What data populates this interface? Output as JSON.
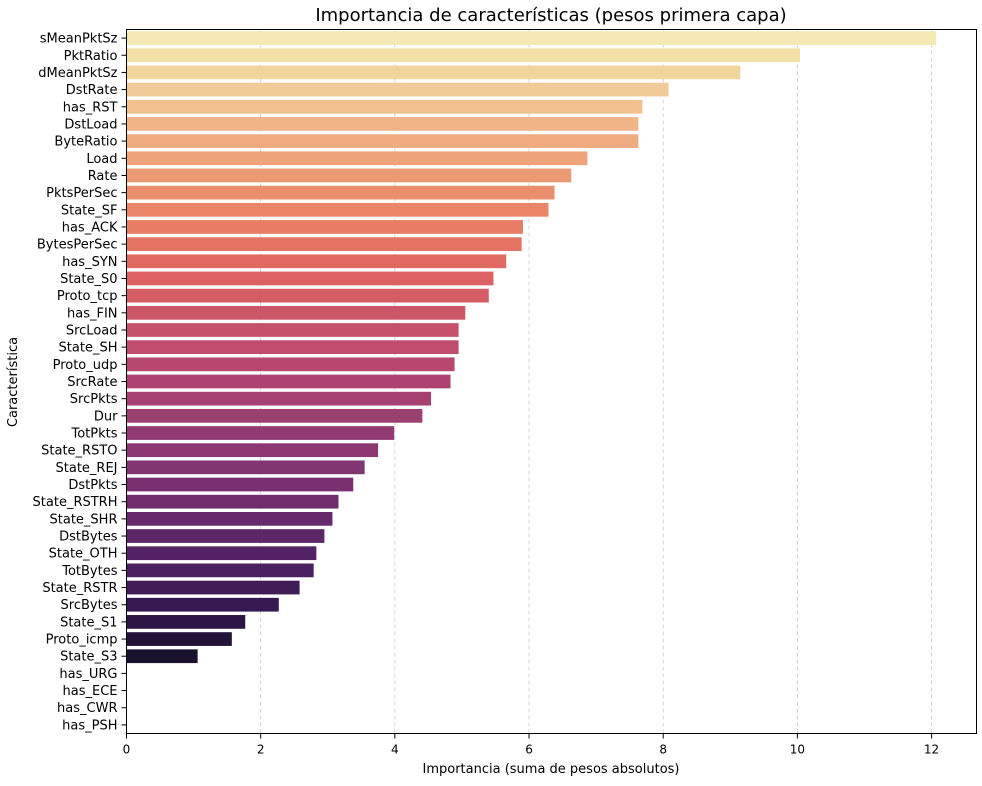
{
  "chart_data": {
    "type": "bar",
    "orientation": "horizontal",
    "title": "Importancia de características (pesos primera capa)",
    "xlabel": "Importancia (suma de pesos absolutos)",
    "ylabel": "Característica",
    "xlim": [
      0,
      12.67
    ],
    "xticks": [
      0,
      2,
      4,
      6,
      8,
      10,
      12
    ],
    "grid": "x, dashed",
    "colormap": "magma (light to dark)",
    "categories": [
      "sMeanPktSz",
      "PktRatio",
      "dMeanPktSz",
      "DstRate",
      "has_RST",
      "DstLoad",
      "ByteRatio",
      "Load",
      "Rate",
      "PktsPerSec",
      "State_SF",
      "has_ACK",
      "BytesPerSec",
      "has_SYN",
      "State_S0",
      "Proto_tcp",
      "has_FIN",
      "SrcLoad",
      "State_SH",
      "Proto_udp",
      "SrcRate",
      "SrcPkts",
      "Dur",
      "TotPkts",
      "State_RSTO",
      "State_REJ",
      "DstPkts",
      "State_RSTRH",
      "State_SHR",
      "DstBytes",
      "State_OTH",
      "TotBytes",
      "State_RSTR",
      "SrcBytes",
      "State_S1",
      "Proto_icmp",
      "State_S3",
      "has_URG",
      "has_ECE",
      "has_CWR",
      "has_PSH"
    ],
    "values": [
      12.07,
      10.04,
      9.15,
      8.08,
      7.69,
      7.63,
      7.63,
      6.87,
      6.63,
      6.38,
      6.29,
      5.91,
      5.89,
      5.66,
      5.47,
      5.4,
      5.05,
      4.95,
      4.95,
      4.89,
      4.83,
      4.54,
      4.41,
      3.99,
      3.75,
      3.55,
      3.38,
      3.16,
      3.07,
      2.95,
      2.83,
      2.79,
      2.58,
      2.27,
      1.77,
      1.57,
      1.06,
      0,
      0,
      0,
      0
    ],
    "colors": [
      "#f4e9b5",
      "#f3e0a6",
      "#f1d69c",
      "#f0cb97",
      "#f1c08f",
      "#f0b487",
      "#efab80",
      "#eea37a",
      "#eb9a74",
      "#ea8f6c",
      "#e98667",
      "#e77d65",
      "#e47362",
      "#e06962",
      "#dc6264",
      "#d55b65",
      "#ce5669",
      "#c6516b",
      "#bf4c6d",
      "#b6486f",
      "#ad4470",
      "#a54171",
      "#9c3f71",
      "#933a72",
      "#8b3772",
      "#813571",
      "#783070",
      "#6f2d6e",
      "#662a6c",
      "#5d2669",
      "#532265",
      "#4a1f60",
      "#401c59",
      "#361951",
      "#2c1645",
      "#231338",
      "#1a112c",
      "#000000",
      "#000000",
      "#000000",
      "#000000"
    ]
  }
}
